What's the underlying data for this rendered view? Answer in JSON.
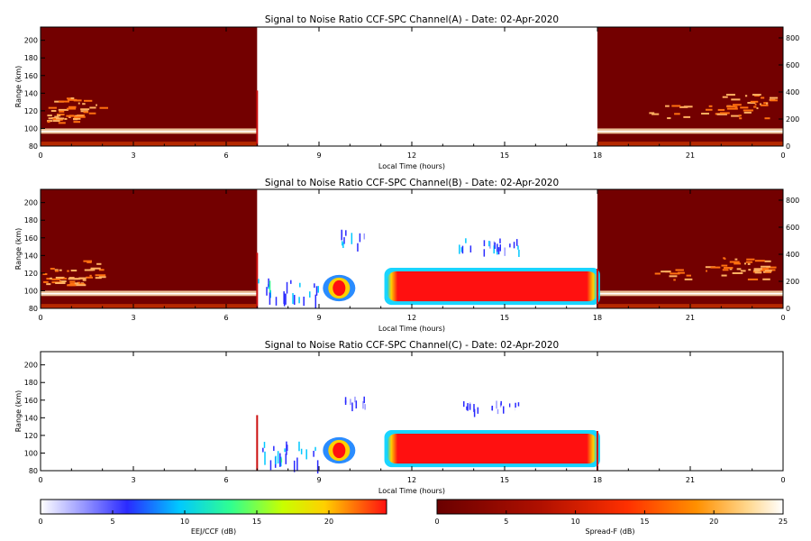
{
  "chart_data": {
    "type": "heatmap",
    "x_ticks": [
      "0",
      "3",
      "6",
      "9",
      "12",
      "15",
      "18",
      "21",
      "0"
    ],
    "y_ticks": [
      "80",
      "100",
      "120",
      "140",
      "160",
      "180",
      "200"
    ],
    "y2_ticks": [
      "0",
      "200",
      "400",
      "600",
      "800"
    ],
    "xlabel": "Local Time (hours)",
    "ylabel": "Range (km)",
    "panels": [
      {
        "title": "Signal to Noise Ratio CCF-SPC Channel(A) - Date: 02-Apr-2020",
        "show_y2": true,
        "night_spread_f": true,
        "xlim": [
          0,
          24
        ],
        "ylim": [
          80,
          215
        ],
        "y2lim": [
          0,
          880
        ],
        "night_windows": [
          [
            0,
            7
          ],
          [
            18,
            24
          ]
        ],
        "day_echoes": []
      },
      {
        "title": "Signal to Noise Ratio CCF-SPC Channel(B) - Date: 02-Apr-2020",
        "show_y2": true,
        "night_spread_f": true,
        "xlim": [
          0,
          24
        ],
        "ylim": [
          80,
          215
        ],
        "y2lim": [
          0,
          880
        ],
        "night_windows": [
          [
            0,
            7
          ],
          [
            18,
            24
          ]
        ],
        "day_echoes": [
          {
            "x": [
              11.2,
              18.0
            ],
            "y": [
              86,
              124
            ],
            "snr_db": 24
          },
          {
            "x": [
              9.3,
              10.0
            ],
            "y": [
              88,
              118
            ],
            "snr_db": 24
          },
          {
            "x": [
              7.0,
              9.0
            ],
            "y": [
              80,
              115
            ],
            "snr_db": 10
          },
          {
            "x": [
              9.7,
              10.5
            ],
            "y": [
              145,
              170
            ],
            "snr_db": 8
          },
          {
            "x": [
              13.5,
              15.5
            ],
            "y": [
              140,
              160
            ],
            "snr_db": 8
          }
        ]
      },
      {
        "title": "Signal to Noise Ratio CCF-SPC Channel(C) - Date: 02-Apr-2020",
        "show_y2": false,
        "night_spread_f": false,
        "xlim": [
          0,
          24
        ],
        "ylim": [
          80,
          215
        ],
        "night_windows": [],
        "day_echoes": [
          {
            "x": [
              11.2,
              18.0
            ],
            "y": [
              86,
              124
            ],
            "snr_db": 24
          },
          {
            "x": [
              9.3,
              10.0
            ],
            "y": [
              88,
              118
            ],
            "snr_db": 24
          },
          {
            "x": [
              7.0,
              9.0
            ],
            "y": [
              80,
              115
            ],
            "snr_db": 10
          },
          {
            "x": [
              9.7,
              10.5
            ],
            "y": [
              148,
              165
            ],
            "snr_db": 6
          },
          {
            "x": [
              13.5,
              15.5
            ],
            "y": [
              145,
              160
            ],
            "snr_db": 6
          }
        ]
      }
    ],
    "colorbars": [
      {
        "label": "EEJ/CCF (dB)",
        "ticks": [
          "0",
          "5",
          "10",
          "15",
          "20"
        ],
        "range": [
          0,
          24
        ],
        "colormap": "rainbow-white"
      },
      {
        "label": "Spread-F (dB)",
        "ticks": [
          "0",
          "5",
          "10",
          "15",
          "20",
          "25"
        ],
        "range": [
          0,
          25
        ],
        "colormap": "hot"
      }
    ]
  }
}
